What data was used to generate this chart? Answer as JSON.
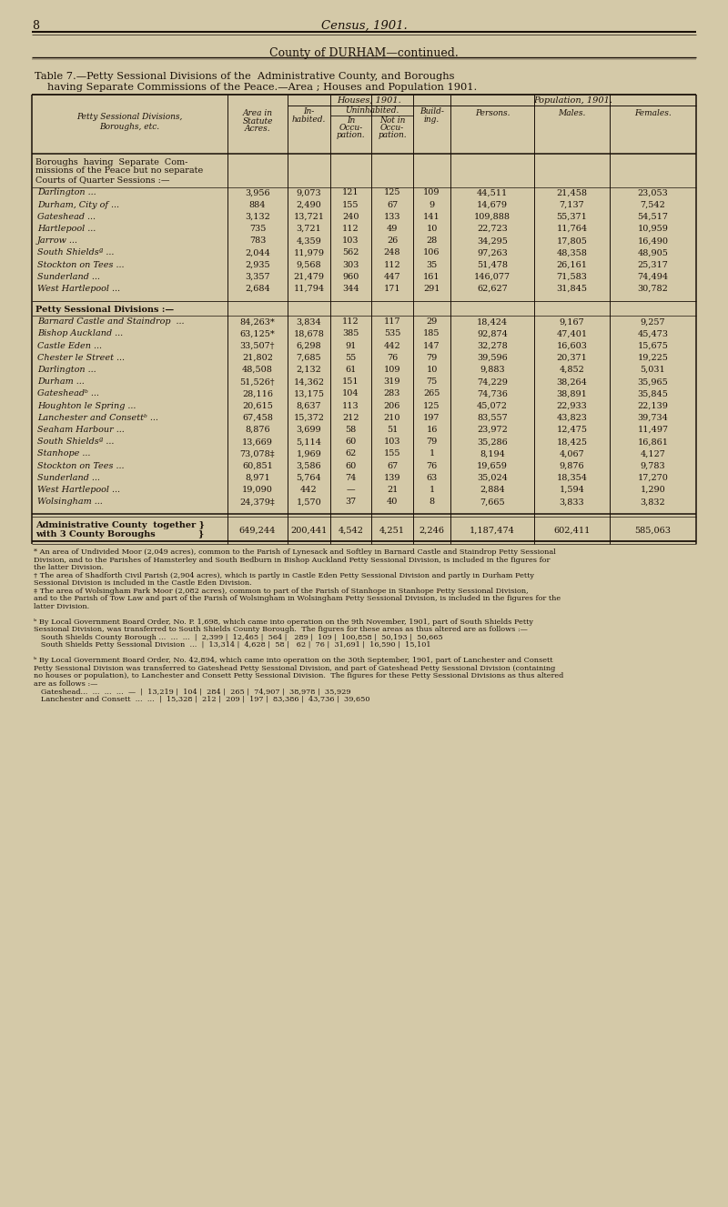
{
  "bg_color": "#d4c9a8",
  "ink_color": "#1a1008",
  "title_page": "8",
  "census_title": "Census, 1901.",
  "county_title": "County of DURHAM—continued.",
  "table_title_line1": "Table 7.—Petty Sessional Divisions of the  Administrative County, and Boroughs",
  "table_title_line2": "having Separate Commissions of the Peace.—Area ; Houses and Population 1901.",
  "section1_header_lines": [
    "Boroughs  having  Separate  Com-",
    "missions of the Peace but no separate",
    "Courts of Quarter Sessions :—"
  ],
  "section1_rows": [
    [
      "Darlington ...",
      "3,956",
      "9,073",
      "121",
      "125",
      "109",
      "44,511",
      "21,458",
      "23,053"
    ],
    [
      "Durham, City of ...",
      "884",
      "2,490",
      "155",
      "67",
      "9",
      "14,679",
      "7,137",
      "7,542"
    ],
    [
      "Gateshead ...",
      "3,132",
      "13,721",
      "240",
      "133",
      "141",
      "109,888",
      "55,371",
      "54,517"
    ],
    [
      "Hartlepool ...",
      "735",
      "3,721",
      "112",
      "49",
      "10",
      "22,723",
      "11,764",
      "10,959"
    ],
    [
      "Jarrow ...",
      "783",
      "4,359",
      "103",
      "26",
      "28",
      "34,295",
      "17,805",
      "16,490"
    ],
    [
      "South Shieldsª ...",
      "2,044",
      "11,979",
      "562",
      "248",
      "106",
      "97,263",
      "48,358",
      "48,905"
    ],
    [
      "Stockton on Tees ...",
      "2,935",
      "9,568",
      "303",
      "112",
      "35",
      "51,478",
      "26,161",
      "25,317"
    ],
    [
      "Sunderland ...",
      "3,357",
      "21,479",
      "960",
      "447",
      "161",
      "146,077",
      "71,583",
      "74,494"
    ],
    [
      "West Hartlepool ...",
      "2,684",
      "11,794",
      "344",
      "171",
      "291",
      "62,627",
      "31,845",
      "30,782"
    ]
  ],
  "section2_header": "Petty Sessional Divisions :—",
  "section2_rows": [
    [
      "Barnard Castle and Staindrop  ...",
      "84,263*",
      "3,834",
      "112",
      "117",
      "29",
      "18,424",
      "9,167",
      "9,257"
    ],
    [
      "Bishop Auckland ...",
      "63,125*",
      "18,678",
      "385",
      "535",
      "185",
      "92,874",
      "47,401",
      "45,473"
    ],
    [
      "Castle Eden ...",
      "33,507†",
      "6,298",
      "91",
      "442",
      "147",
      "32,278",
      "16,603",
      "15,675"
    ],
    [
      "Chester le Street ...",
      "21,802",
      "7,685",
      "55",
      "76",
      "79",
      "39,596",
      "20,371",
      "19,225"
    ],
    [
      "Darlington ...",
      "48,508",
      "2,132",
      "61",
      "109",
      "10",
      "9,883",
      "4,852",
      "5,031"
    ],
    [
      "Durham ...",
      "51,526†",
      "14,362",
      "151",
      "319",
      "75",
      "74,229",
      "38,264",
      "35,965"
    ],
    [
      "Gatesheadᵇ ...",
      "28,116",
      "13,175",
      "104",
      "283",
      "265",
      "74,736",
      "38,891",
      "35,845"
    ],
    [
      "Houghton le Spring ...",
      "20,615",
      "8,637",
      "113",
      "206",
      "125",
      "45,072",
      "22,933",
      "22,139"
    ],
    [
      "Lanchester and Consettᵇ ...",
      "67,458",
      "15,372",
      "212",
      "210",
      "197",
      "83,557",
      "43,823",
      "39,734"
    ],
    [
      "Seaham Harbour ...",
      "8,876",
      "3,699",
      "58",
      "51",
      "16",
      "23,972",
      "12,475",
      "11,497"
    ],
    [
      "South Shieldsª ...",
      "13,669",
      "5,114",
      "60",
      "103",
      "79",
      "35,286",
      "18,425",
      "16,861"
    ],
    [
      "Stanhope ...",
      "73,078‡",
      "1,969",
      "62",
      "155",
      "1",
      "8,194",
      "4,067",
      "4,127"
    ],
    [
      "Stockton on Tees ...",
      "60,851",
      "3,586",
      "60",
      "67",
      "76",
      "19,659",
      "9,876",
      "9,783"
    ],
    [
      "Sunderland ...",
      "8,971",
      "5,764",
      "74",
      "139",
      "63",
      "35,024",
      "18,354",
      "17,270"
    ],
    [
      "West Hartlepool ...",
      "19,090",
      "442",
      "—",
      "21",
      "1",
      "2,884",
      "1,594",
      "1,290"
    ],
    [
      "Wolsingham ...",
      "24,379‡",
      "1,570",
      "37",
      "40",
      "8",
      "7,665",
      "3,833",
      "3,832"
    ]
  ],
  "totals_row_line1": "Administrative County  together }",
  "totals_row_line2": "with 3 County Boroughs              }",
  "totals_values": [
    "649,244",
    "200,441",
    "4,542",
    "4,251",
    "2,246",
    "1,187,474",
    "602,411",
    "585,063"
  ],
  "footnote_lines": [
    "* An area of Undivided Moor (2,049 acres), common to the Parish of Lynesack and Softley in Barnard Castle and Staindrop Petty Sessional",
    "Division, and to the Parishes of Hamsterley and South Bedburn in Bishop Auckland Petty Sessional Division, is included in the figures for",
    "the latter Division.",
    "† The area of Shadforth Civil Parish (2,904 acres), which is partly in Castle Eden Petty Sessional Division and partly in Durham Petty",
    "Sessional Division is included in the Castle Eden Division.",
    "‡ The area of Wolsingham Park Moor (2,082 acres), common to part of the Parish of Stanhope in Stanhope Petty Sessional Division,",
    "and to the Parish of Tow Law and part of the Parish of Wolsingham in Wolsingham Petty Sessional Division, is included in the figures for the",
    "latter Division.",
    "",
    "ᵇ By Local Government Board Order, No. P. 1,698, which came into operation on the 9th November, 1901, part of South Shields Petty",
    "Sessional Division, was transferred to South Shields County Borough.  The figures for these areas as thus altered are as follows :—",
    "   South Shields County Borough ...  ...  ...  |  2,399 |  12,465 |  564 |   289 |  109 |  100,858 |  50,193 |  50,665",
    "   South Shields Petty Sessional Division  ...  |  13,314 |  4,628 |  58 |   62 |  76 |  31,691 |  16,590 |  15,101",
    "",
    "ᵇ By Local Government Board Order, No. 42,894, which came into operation on the 30th September, 1901, part of Lanchester and Consett",
    "Petty Sessional Division was transferred to Gateshead Petty Sessional Division, and part of Gateshead Petty Sessional Division (containing",
    "no houses or population), to Lanchester and Consett Petty Sessional Division.  The figures for these Petty Sessional Divisions as thus altered",
    "are as follows :—",
    "   Gateshead...  ...  ...  ...  —  |  13,219 |  104 |  284 |  265 |  74,907 |  38,978 |  35,929",
    "   Lanchester and Consett  ...  ...  |  15,328 |  212 |  209 |  197 |  83,386 |  43,736 |  39,650"
  ]
}
